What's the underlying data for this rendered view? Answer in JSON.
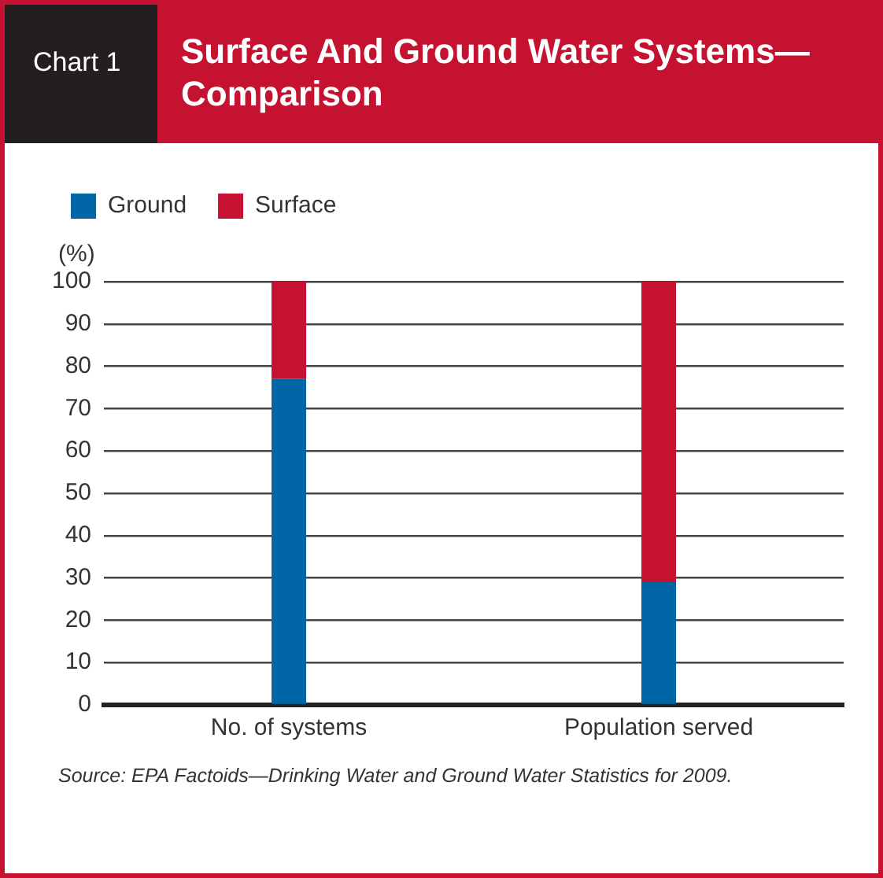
{
  "chart_data": {
    "type": "bar",
    "title": "Surface And Ground Water Systems—Comparison",
    "subtitle": "Chart 1",
    "ylabel": "(%)",
    "categories": [
      "No. of systems",
      "Population served"
    ],
    "series": [
      {
        "name": "Ground",
        "color": "#0066a6",
        "values": [
          77,
          29
        ]
      },
      {
        "name": "Surface",
        "color": "#c41230",
        "values": [
          23,
          71
        ]
      }
    ],
    "stacked": true,
    "ylim": [
      0,
      100
    ],
    "yticks": [
      0,
      10,
      20,
      30,
      40,
      50,
      60,
      70,
      80,
      90,
      100
    ],
    "grid": "y",
    "legend": "top left",
    "annotations": [
      "Source: EPA Factoids—Drinking Water and Ground Water Statistics for 2009."
    ]
  }
}
